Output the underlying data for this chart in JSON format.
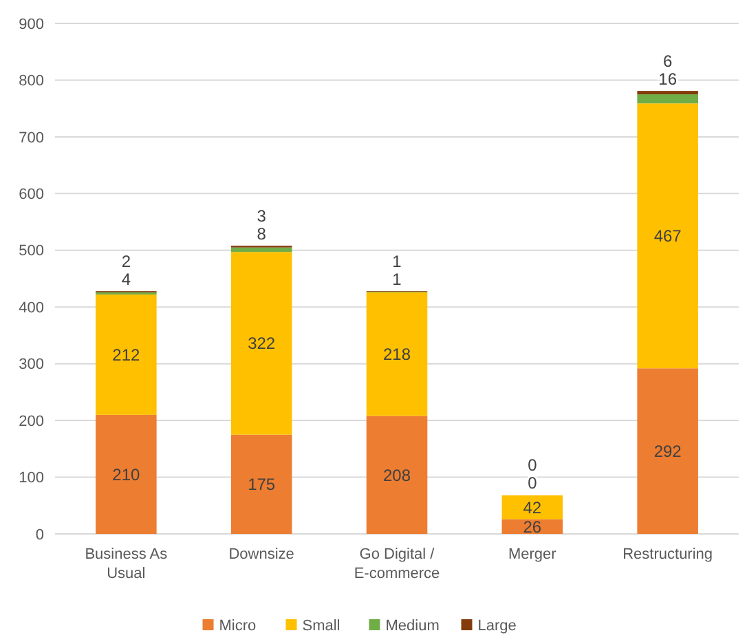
{
  "chart_data": {
    "type": "bar",
    "stacked": true,
    "categories": [
      "Business As Usual",
      "Downsize",
      "Go Digital / E-commerce",
      "Merger",
      "Restructuring"
    ],
    "series": [
      {
        "name": "Micro",
        "color": "#ed7d31",
        "values": [
          210,
          175,
          208,
          26,
          292
        ]
      },
      {
        "name": "Small",
        "color": "#ffc000",
        "values": [
          212,
          322,
          218,
          42,
          467
        ]
      },
      {
        "name": "Medium",
        "color": "#70ad47",
        "values": [
          4,
          8,
          1,
          0,
          16
        ]
      },
      {
        "name": "Large",
        "color": "#843c0c",
        "values": [
          2,
          3,
          1,
          0,
          6
        ]
      }
    ],
    "ylim": [
      0,
      900
    ],
    "yticks": [
      0,
      100,
      200,
      300,
      400,
      500,
      600,
      700,
      800,
      900
    ],
    "grid": "y",
    "legend": "bottom",
    "data_labels": true
  }
}
